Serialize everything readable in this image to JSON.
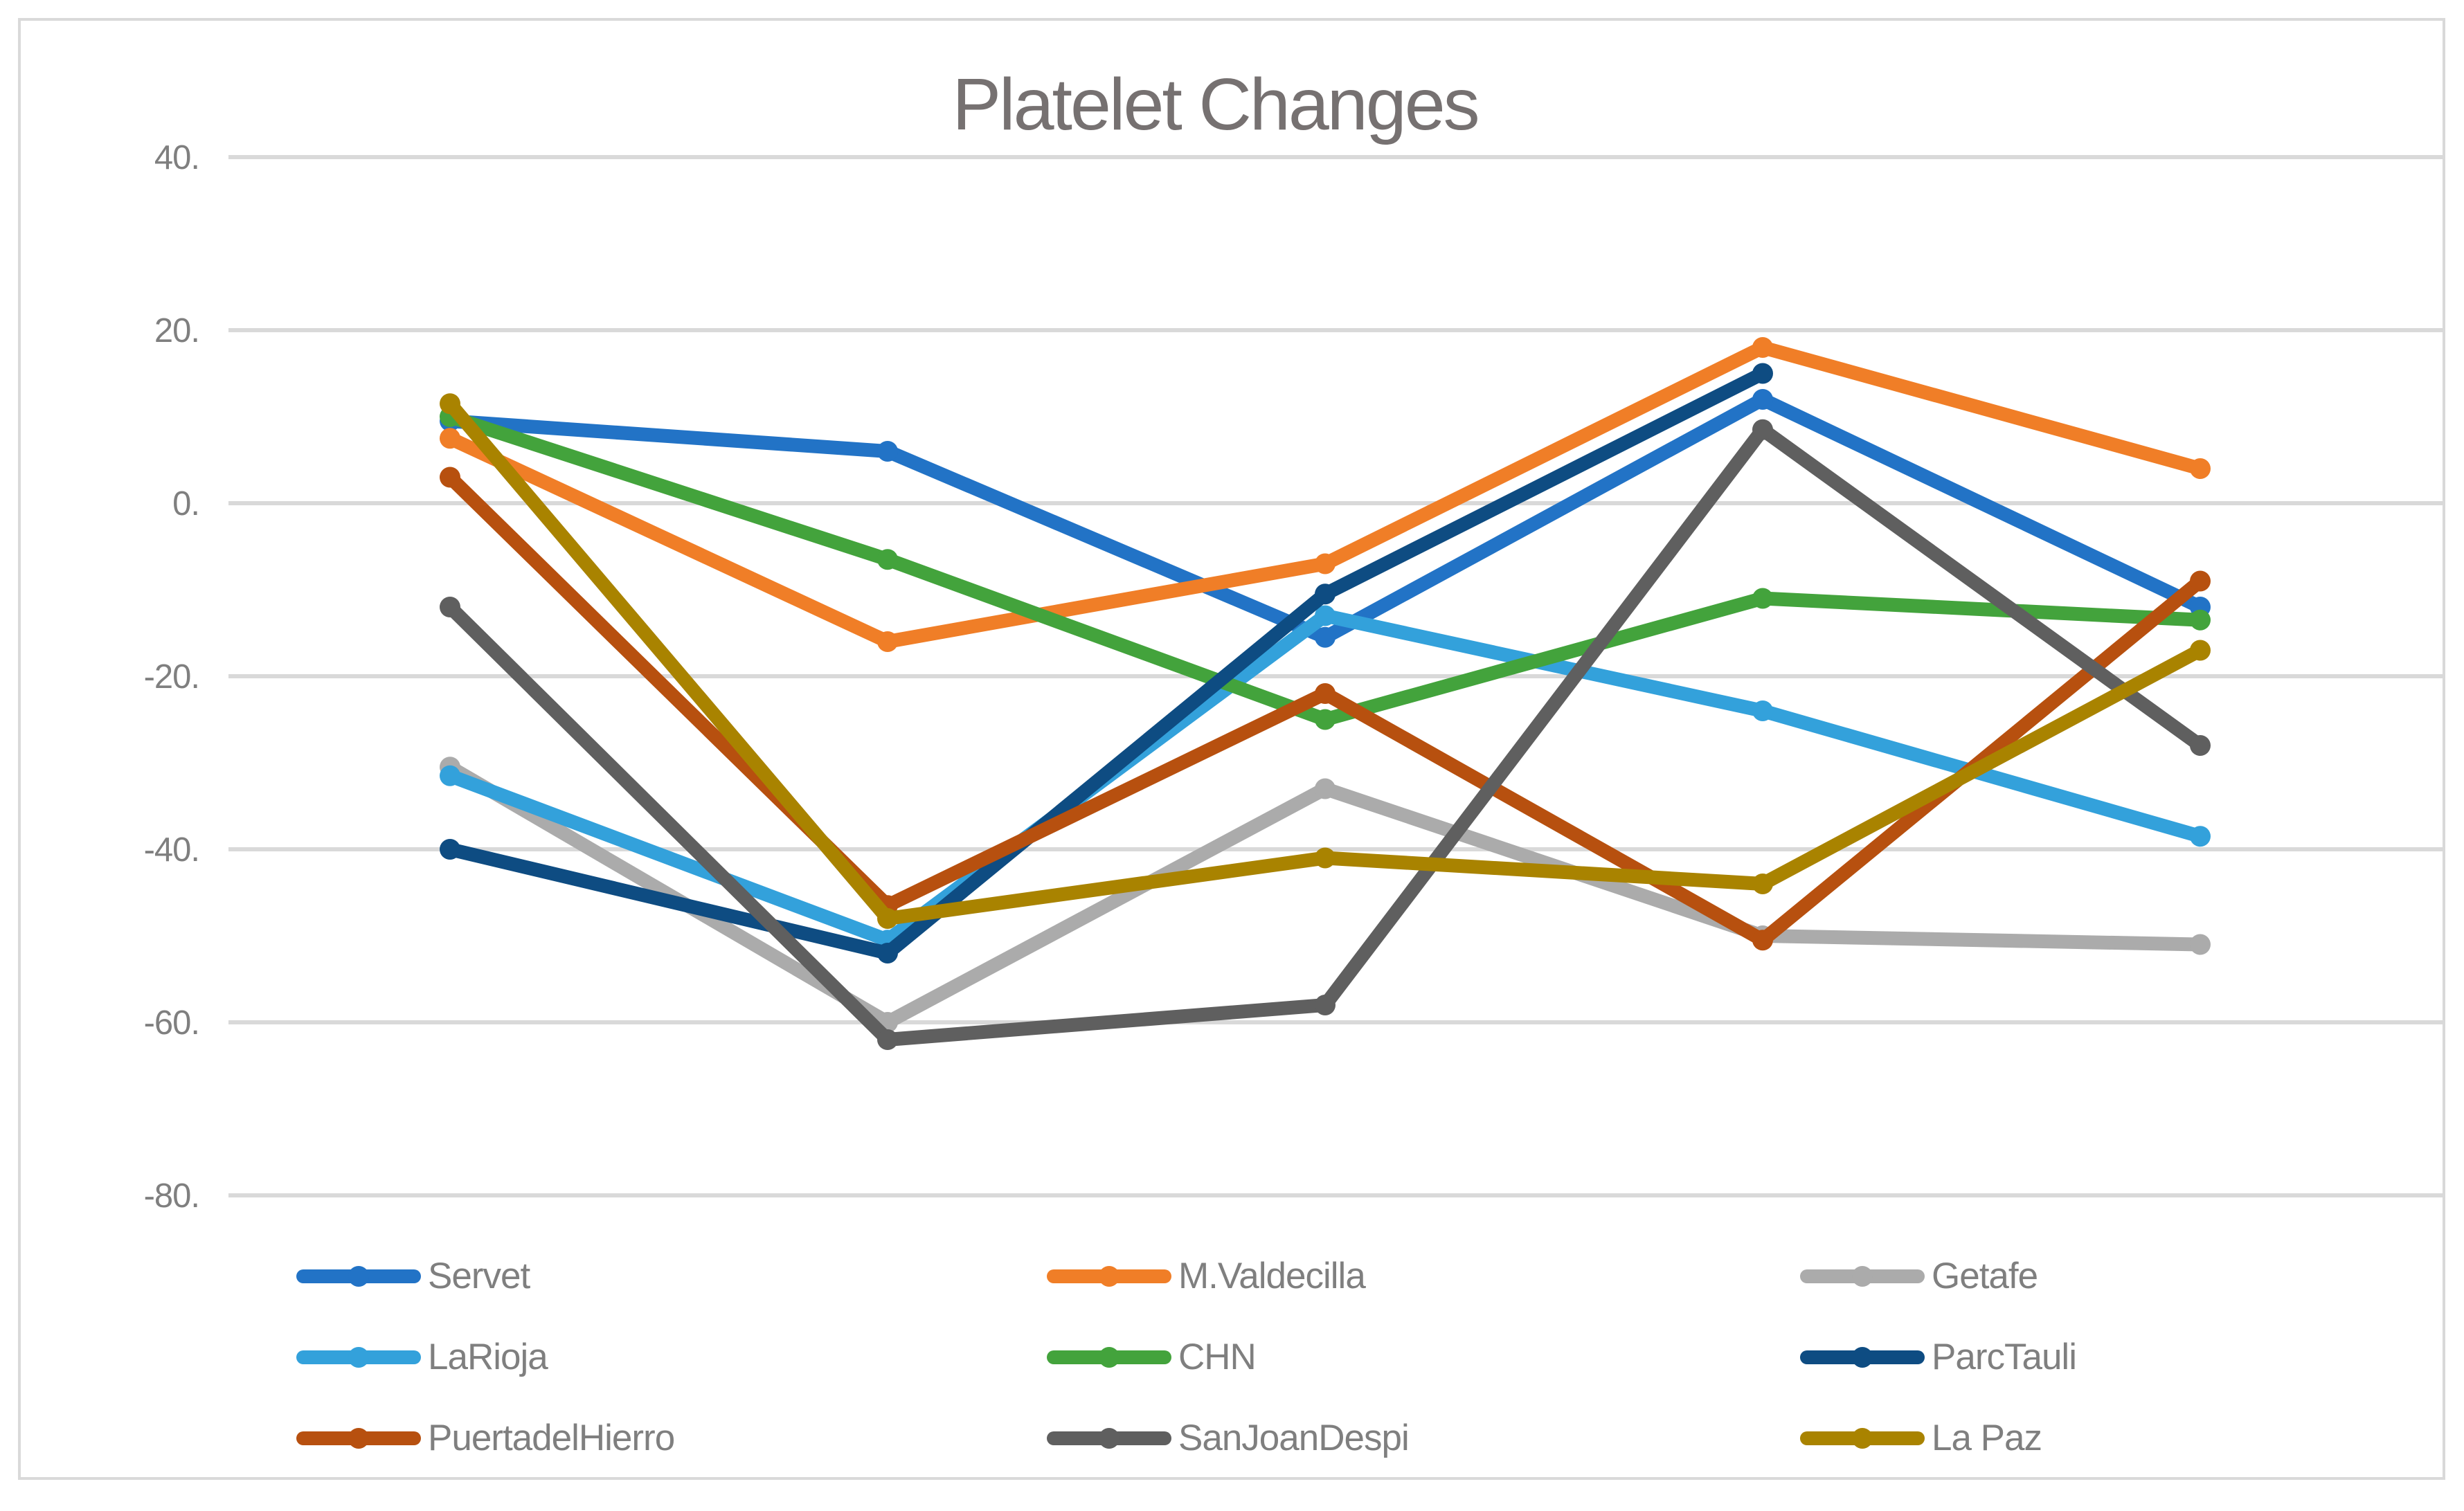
{
  "chart_data": {
    "type": "line",
    "title": "Platelet Changes",
    "x": [
      1,
      2,
      3,
      4,
      5
    ],
    "x_axis": {
      "labels_visible": false
    },
    "y_axis": {
      "min": -80,
      "max": 40,
      "step": 20,
      "tick_values": [
        40,
        20,
        0,
        -20,
        -40,
        -60,
        -80
      ],
      "tick_labels": [
        "40.",
        "20.",
        "0.",
        "-20.",
        "-40.",
        "-60.",
        "-80."
      ]
    },
    "grid": "horizontal",
    "legend_position": "bottom",
    "legend_columns": 3,
    "series": [
      {
        "name": "Servet",
        "color": "#2273C6",
        "values": [
          9.5,
          6,
          -15.5,
          12,
          -12
        ]
      },
      {
        "name": "M.Valdecilla",
        "color": "#F07E27",
        "values": [
          7.5,
          -16,
          -7,
          18,
          4
        ]
      },
      {
        "name": "Getafe",
        "color": "#ABABAB",
        "values": [
          -30.5,
          -60,
          -33,
          -50,
          -51
        ]
      },
      {
        "name": "LaRioja",
        "color": "#33A1DB",
        "values": [
          -31.5,
          -50.5,
          -13,
          -24,
          -38.5
        ]
      },
      {
        "name": "CHN",
        "color": "#43A33C",
        "values": [
          10,
          -6.5,
          -25,
          -11,
          -13.5
        ]
      },
      {
        "name": "ParcTauli",
        "color": "#0E4C82",
        "values": [
          -40,
          -52,
          -10.5,
          15,
          null
        ]
      },
      {
        "name": "PuertadelHierro",
        "color": "#B7500F",
        "values": [
          3,
          -46.5,
          -22,
          -50.5,
          -9
        ]
      },
      {
        "name": "SanJoanDespi",
        "color": "#5F5F5F",
        "values": [
          -12,
          -62,
          -58,
          8.5,
          -28
        ]
      },
      {
        "name": "La Paz",
        "color": "#A98300",
        "values": [
          11.5,
          -48,
          -41,
          -44,
          -17
        ]
      }
    ]
  },
  "styles": {
    "grid_color": "#D9D9D9",
    "border_color": "#D9D9D9",
    "label_color": "#7F7F7F",
    "title_color": "#767171",
    "background": "#FFFFFF"
  }
}
